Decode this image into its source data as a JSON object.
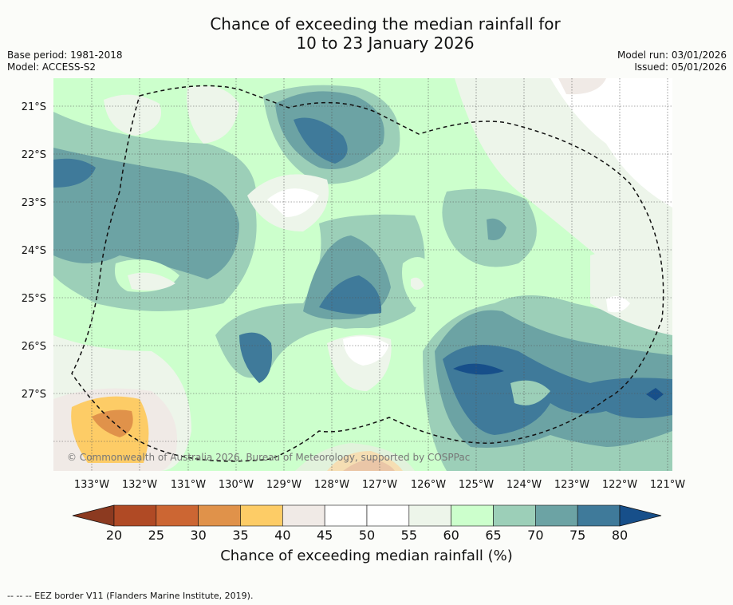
{
  "title_line1": "Chance of exceeding the median rainfall for",
  "title_line2": "10 to 23 January 2026",
  "base_period": "Base period: 1981-2018",
  "model": "Model: ACCESS-S2",
  "model_run": "Model run: 03/01/2026",
  "issued": "Issued: 05/01/2026",
  "copyright": "© Commonwealth of Australia 2026, Bureau of Meteorology, supported by COSPPac",
  "longitudes": [
    "133°W",
    "132°W",
    "131°W",
    "130°W",
    "129°W",
    "128°W",
    "127°W",
    "126°W",
    "125°W",
    "124°W",
    "123°W",
    "122°W",
    "121°W"
  ],
  "latitudes": [
    "21°S",
    "22°S",
    "23°S",
    "24°S",
    "25°S",
    "26°S",
    "27°S"
  ],
  "colorbar": {
    "title": "Chance of exceeding median rainfall (%)",
    "ticks": [
      "20",
      "25",
      "30",
      "35",
      "40",
      "45",
      "50",
      "55",
      "60",
      "65",
      "70",
      "75",
      "80"
    ],
    "colors": [
      "#8c3a20",
      "#b04a25",
      "#cc6633",
      "#e0924a",
      "#fdcc66",
      "#f0eae6",
      "#ffffff",
      "#ffffff",
      "#edf5ea",
      "#ccffcc",
      "#9ccfb8",
      "#6ca3a4",
      "#3f7a9a",
      "#174f8a"
    ]
  },
  "footer": "--  --  -- EEZ border V11 (Flanders Marine Institute, 2019)."
}
